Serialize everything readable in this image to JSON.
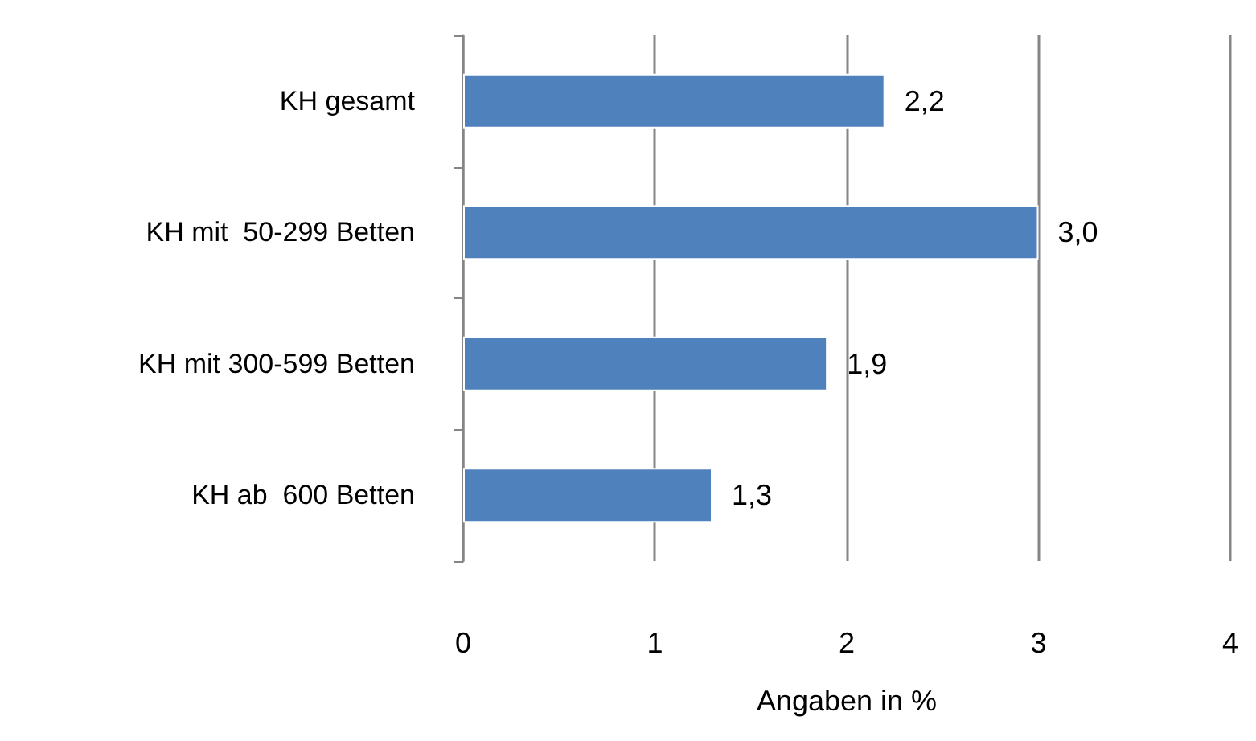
{
  "chart_data": {
    "type": "bar",
    "orientation": "horizontal",
    "xlabel": "Angaben in %",
    "categories": [
      "KH gesamt",
      "KH mit  50-299 Betten",
      "KH mit 300-599 Betten",
      "KH ab  600 Betten"
    ],
    "values": [
      2.2,
      3.0,
      1.9,
      1.3
    ],
    "value_labels": [
      "2,2",
      "3,0",
      "1,9",
      "1,3"
    ],
    "color": "#4f81bd",
    "xlim": [
      0,
      4
    ],
    "xticks": [
      0,
      1,
      2,
      3,
      4
    ],
    "grid": "x"
  }
}
